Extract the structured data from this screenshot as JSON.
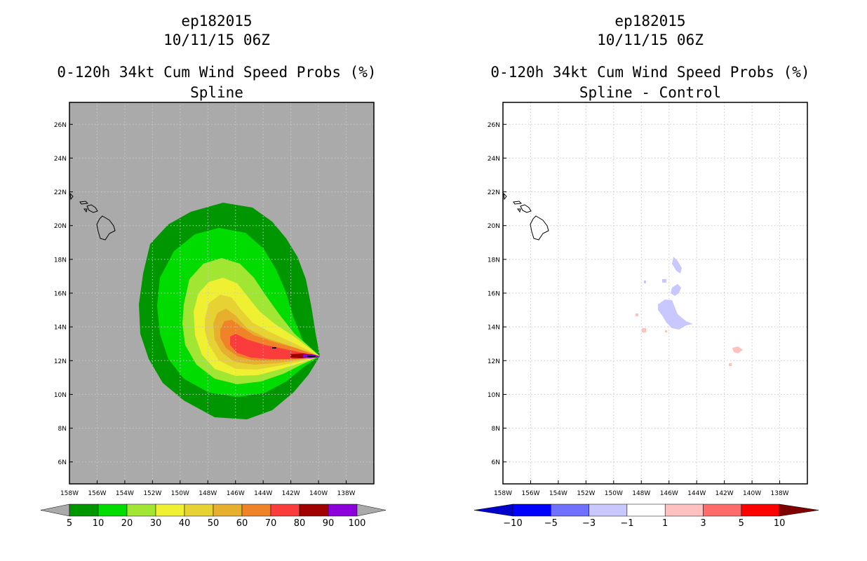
{
  "chart_data": [
    {
      "type": "heatmap",
      "storm_id": "ep182015",
      "datetime": "10/11/15 06Z",
      "title": "0-120h 34kt Cum Wind Speed Probs (%)",
      "subtitle": "Spline",
      "xlim": [
        -158,
        -136
      ],
      "ylim": [
        4.7,
        27.3
      ],
      "x_ticks": [
        -158,
        -156,
        -154,
        -152,
        -150,
        -148,
        -146,
        -144,
        -142,
        -140,
        -138
      ],
      "x_tick_labels": [
        "158W",
        "156W",
        "154W",
        "152W",
        "150W",
        "148W",
        "146W",
        "144W",
        "142W",
        "140W",
        "138W"
      ],
      "y_ticks": [
        6,
        8,
        10,
        12,
        14,
        16,
        18,
        20,
        22,
        24,
        26
      ],
      "y_tick_labels": [
        "6N",
        "8N",
        "10N",
        "12N",
        "14N",
        "16N",
        "18N",
        "20N",
        "22N",
        "24N",
        "26N"
      ],
      "grid": "dotted",
      "background_color": "#aaaaaa",
      "contour_levels": [
        5,
        10,
        20,
        30,
        40,
        50,
        60,
        70,
        80,
        90,
        100
      ],
      "colorbar_labels": [
        "5",
        "10",
        "20",
        "30",
        "40",
        "50",
        "60",
        "70",
        "80",
        "90",
        "100"
      ],
      "colorbar_colors": [
        "#009600",
        "#00dc00",
        "#a0e632",
        "#f0f032",
        "#e6d232",
        "#e6af2d",
        "#f08228",
        "#fa3c3c",
        "#a00000",
        "#8c00dc"
      ],
      "colorbar_end_colors": [
        "#aaaaaa",
        "#aaaaaa"
      ],
      "peak_location": [
        -140.3,
        12.0
      ]
    },
    {
      "type": "heatmap",
      "storm_id": "ep182015",
      "datetime": "10/11/15 06Z",
      "title": "0-120h 34kt Cum Wind Speed Probs (%)",
      "subtitle": "Spline - Control",
      "xlim": [
        -158,
        -136
      ],
      "ylim": [
        4.7,
        27.3
      ],
      "x_ticks": [
        -158,
        -156,
        -154,
        -152,
        -150,
        -148,
        -146,
        -144,
        -142,
        -140,
        -138
      ],
      "x_tick_labels": [
        "158W",
        "156W",
        "154W",
        "152W",
        "150W",
        "148W",
        "146W",
        "144W",
        "142W",
        "140W",
        "138W"
      ],
      "y_ticks": [
        6,
        8,
        10,
        12,
        14,
        16,
        18,
        20,
        22,
        24,
        26
      ],
      "y_tick_labels": [
        "6N",
        "8N",
        "10N",
        "12N",
        "14N",
        "16N",
        "18N",
        "20N",
        "22N",
        "24N",
        "26N"
      ],
      "grid": "dotted",
      "background_color": "#ffffff",
      "contour_levels": [
        -10,
        -5,
        -3,
        -1,
        1,
        3,
        5,
        10
      ],
      "colorbar_labels": [
        "−10",
        "−5",
        "−3",
        "−1",
        "1",
        "3",
        "5",
        "10"
      ],
      "colorbar_colors": [
        "#0000cd",
        "#0000ff",
        "#7070ff",
        "#c8c8ff",
        "#ffffff",
        "#ffc0c0",
        "#ff6a6a",
        "#ff0000",
        "#7f0000"
      ],
      "difference_regions": [
        {
          "sign": "negative",
          "bin": "-3 to -1",
          "approx_center": [
            -145.5,
            14.5
          ]
        },
        {
          "sign": "negative",
          "bin": "-3 to -1",
          "approx_center": [
            -145.6,
            16.0
          ]
        },
        {
          "sign": "negative",
          "bin": "-3 to -1",
          "approx_center": [
            -145.8,
            17.9
          ]
        },
        {
          "sign": "positive",
          "bin": "1 to 3",
          "approx_center": [
            -141.7,
            12.5
          ]
        },
        {
          "sign": "positive",
          "bin": "1 to 3",
          "approx_center": [
            -148.4,
            13.5
          ]
        },
        {
          "sign": "positive",
          "bin": "1 to 3",
          "approx_center": [
            -149.0,
            14.5
          ]
        }
      ]
    }
  ]
}
